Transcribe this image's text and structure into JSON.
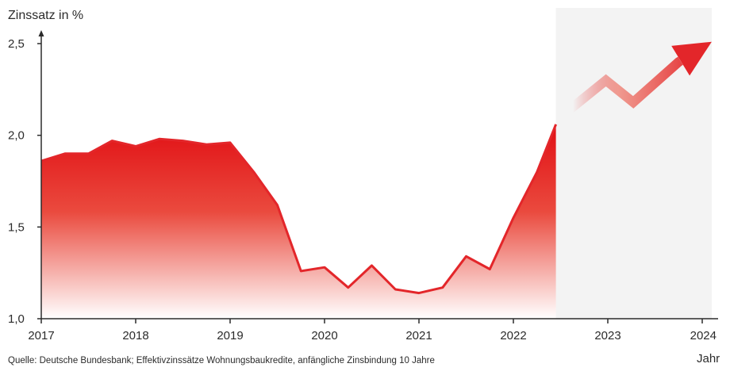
{
  "chart_data": {
    "type": "area",
    "ylabel": "Zinssatz in %",
    "xlabel": "Jahr",
    "source": "Quelle: Deutsche Bundesbank; Effektivzinssätze Wohnungsbaukredite, anfängliche Zinsbindung 10 Jahre",
    "ylim": [
      1.0,
      2.5
    ],
    "xlim": [
      2017,
      2024
    ],
    "y_ticks": [
      "1,0",
      "1,5",
      "2,0",
      "2,5"
    ],
    "y_tick_values": [
      1.0,
      1.5,
      2.0,
      2.5
    ],
    "x_ticks": [
      "2017",
      "2018",
      "2019",
      "2020",
      "2021",
      "2022",
      "2023",
      "2024"
    ],
    "x_tick_values": [
      2017,
      2018,
      2019,
      2020,
      2021,
      2022,
      2023,
      2024
    ],
    "series": [
      {
        "points": [
          [
            2017.0,
            1.86
          ],
          [
            2017.25,
            1.9
          ],
          [
            2017.5,
            1.9
          ],
          [
            2017.75,
            1.97
          ],
          [
            2018.0,
            1.94
          ],
          [
            2018.25,
            1.98
          ],
          [
            2018.5,
            1.97
          ],
          [
            2018.75,
            1.95
          ],
          [
            2019.0,
            1.96
          ],
          [
            2019.25,
            1.8
          ],
          [
            2019.5,
            1.62
          ],
          [
            2019.75,
            1.26
          ],
          [
            2020.0,
            1.28
          ],
          [
            2020.25,
            1.17
          ],
          [
            2020.5,
            1.29
          ],
          [
            2020.75,
            1.16
          ],
          [
            2021.0,
            1.14
          ],
          [
            2021.25,
            1.17
          ],
          [
            2021.5,
            1.34
          ],
          [
            2021.75,
            1.27
          ],
          [
            2022.0,
            1.55
          ],
          [
            2022.25,
            1.8
          ],
          [
            2022.45,
            2.06
          ]
        ]
      }
    ],
    "forecast": {
      "shaded_from": 2022.45,
      "arrow_points": [
        [
          2022.5,
          2.1
        ],
        [
          2022.98,
          2.3
        ],
        [
          2023.27,
          2.18
        ],
        [
          2023.75,
          2.4
        ],
        [
          2024.1,
          2.51
        ]
      ]
    },
    "colors": {
      "line": "#e3262a",
      "fill_top": "#e10f14",
      "fill_bottom": "#ffffff",
      "forecast_bg": "#f3f3f3",
      "axis": "#2b2b2b"
    }
  }
}
